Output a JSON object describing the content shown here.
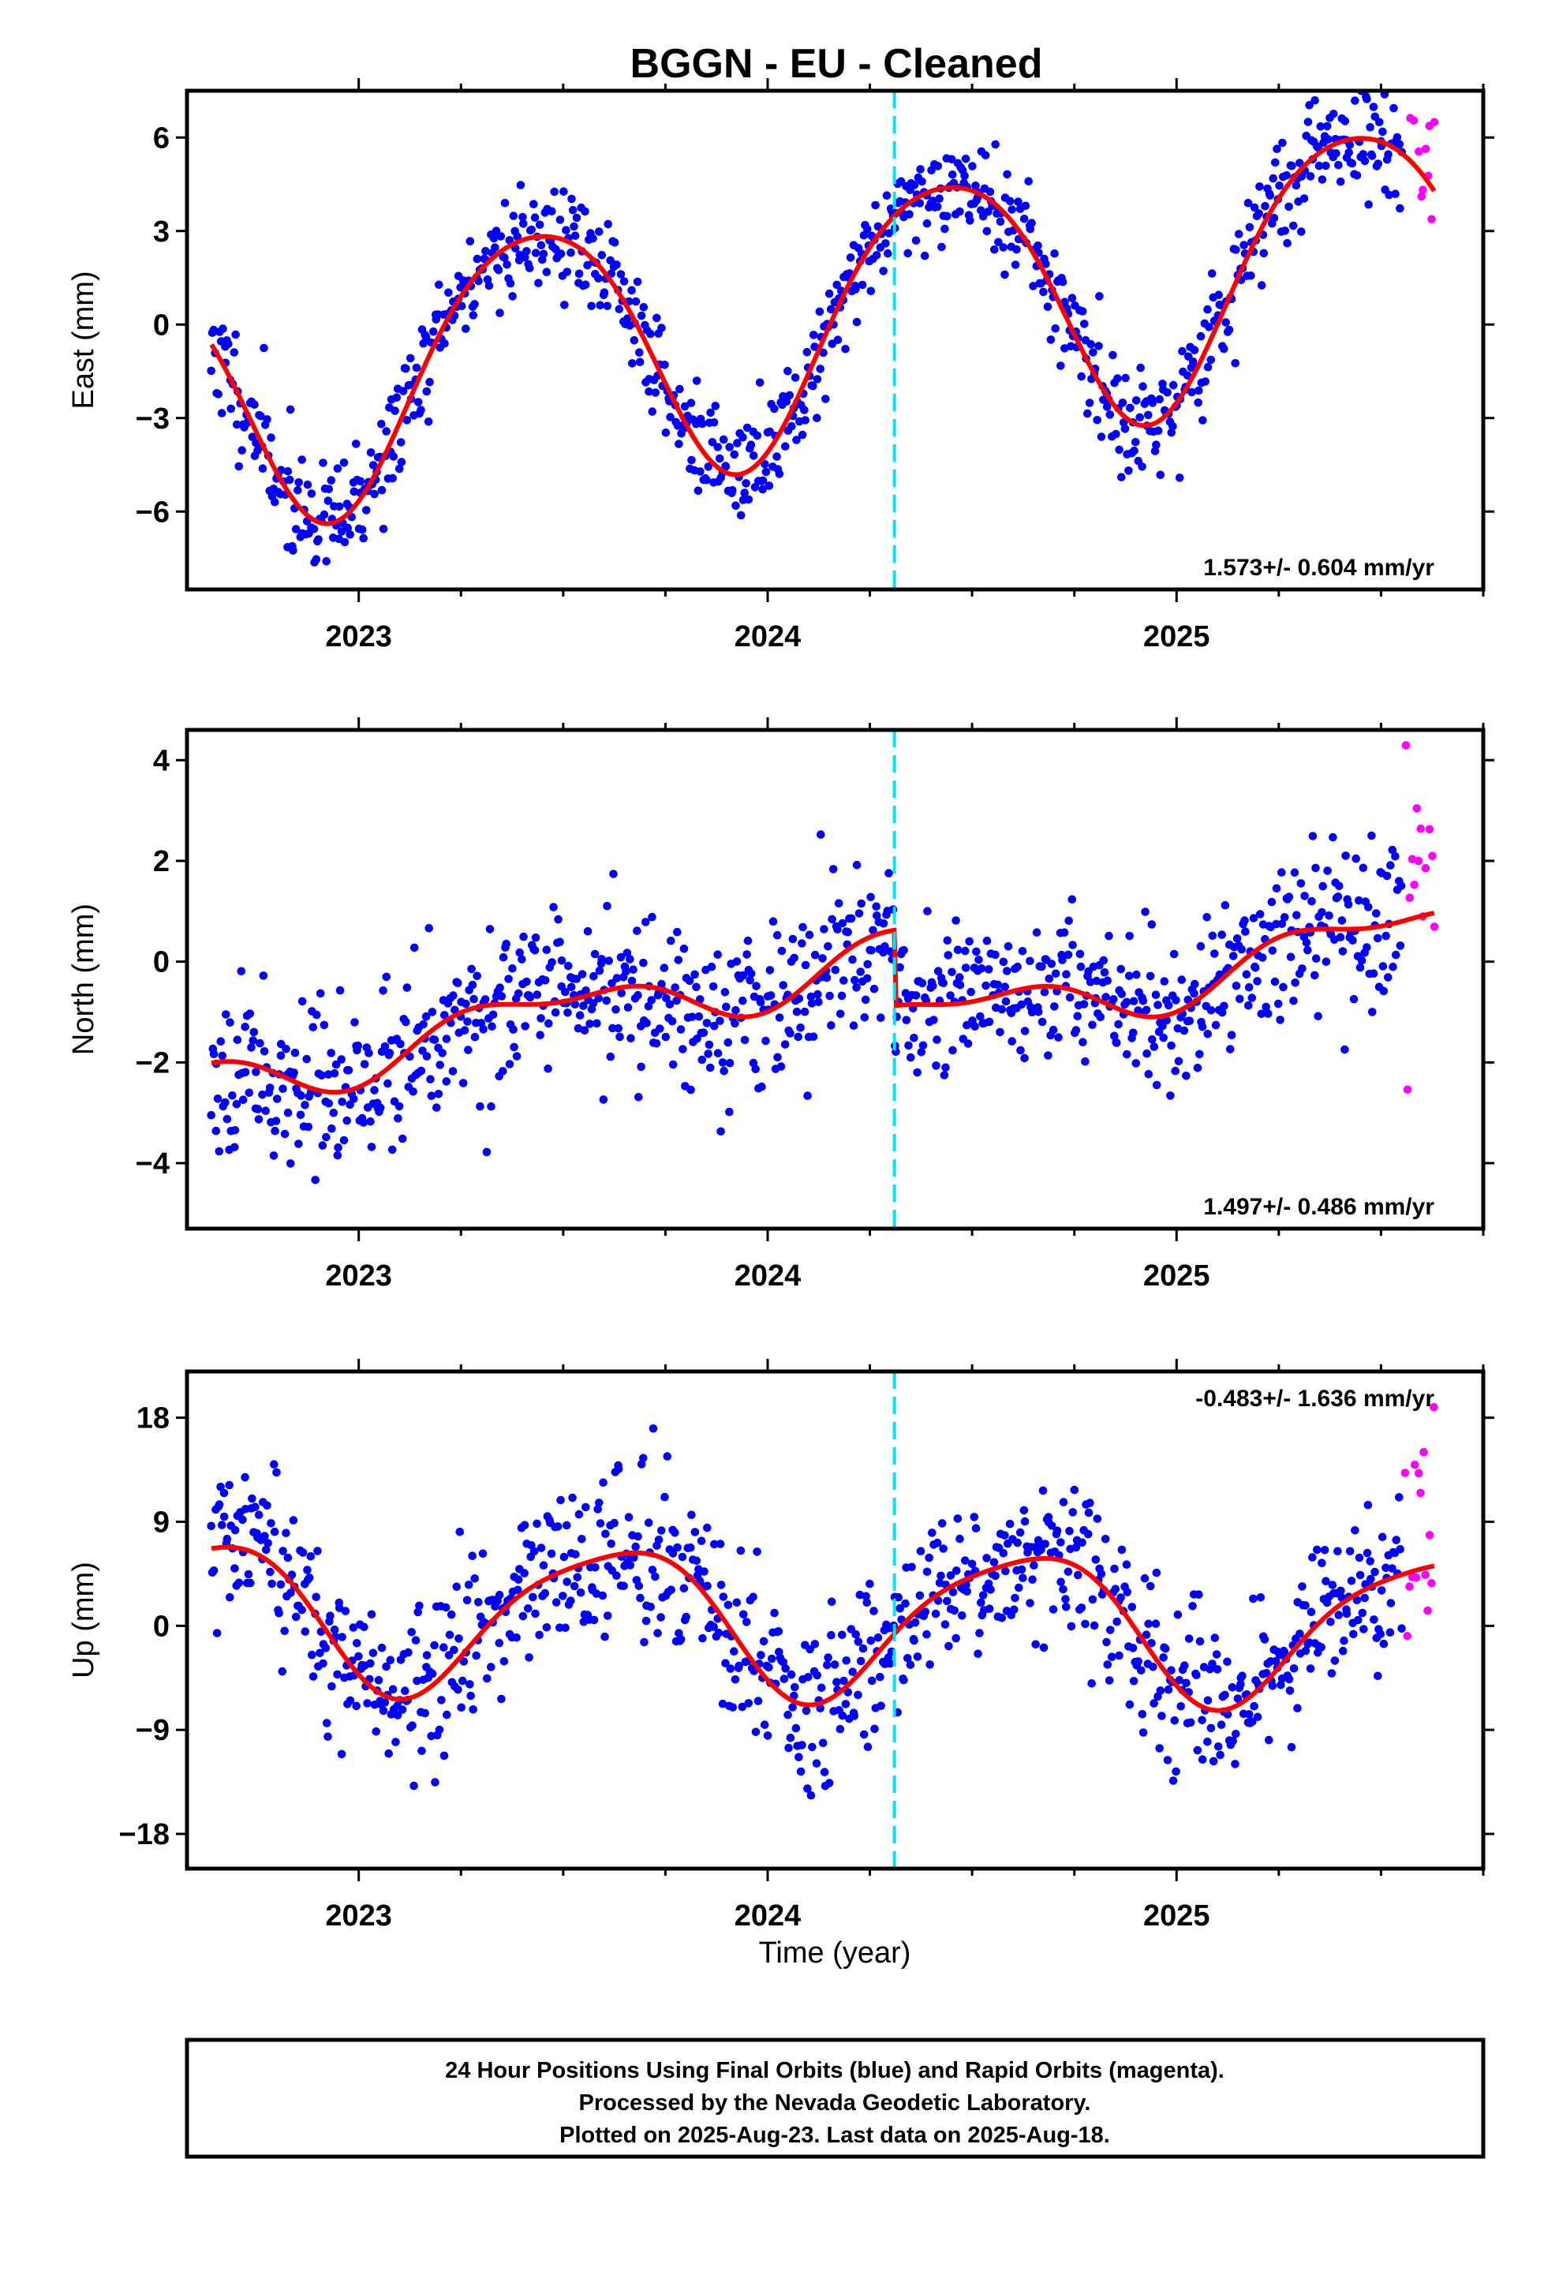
{
  "title": "BGGN  - EU - Cleaned",
  "x_axis_label": "Time (year)",
  "caption_lines": [
    "24 Hour Positions Using Final Orbits (blue) and Rapid Orbits (magenta).",
    "Processed by the Nevada Geodetic Laboratory.",
    "Plotted on 2025-Aug-23. Last data on 2025-Aug-18."
  ],
  "colors": {
    "final_orbits": "#0000ff",
    "rapid_orbits": "#ff00ff",
    "model_fit": "#ff0000",
    "equipment_change": "#00e5ee",
    "frame": "#000000",
    "background": "#ffffff"
  },
  "chart_data": [
    {
      "type": "scatter",
      "component": "east",
      "ylabel": "East (mm)",
      "rate_label": "1.573+/- 0.604 mm/yr",
      "rate_position": "bottom-right",
      "xlim": [
        2022.58,
        2025.75
      ],
      "ylim": [
        -8.5,
        7.5
      ],
      "yticks": [
        -6,
        -3,
        0,
        3,
        6
      ],
      "yticklabels": [
        "−6",
        "−3",
        "0",
        "3",
        "6"
      ],
      "xticks": [
        2023,
        2024,
        2025
      ],
      "xticklabels": [
        "2023",
        "2024",
        "2025"
      ],
      "x_minor_ticks": [
        2023.25,
        2023.5,
        2023.75,
        2024.25,
        2024.5,
        2024.75,
        2025.25,
        2025.5,
        2025.75
      ],
      "equipment_change_x": 2024.31,
      "fit": {
        "offset": 0.0,
        "trend": 1.573,
        "amp1": 4.2,
        "phase1": 2023.18,
        "amp2": 0.5,
        "phase2": 2023.05,
        "step": 0.0,
        "noise": 0.9,
        "seed": 11
      },
      "series": [
        {
          "name": "Final Orbits",
          "x_start": 2022.64,
          "x_end": 2025.55,
          "n": 900,
          "color": "#0000ff"
        },
        {
          "name": "Rapid Orbits",
          "x_start": 2025.56,
          "x_end": 2025.63,
          "n": 14,
          "color": "#ff00ff"
        }
      ],
      "grid": false,
      "legend": "none"
    },
    {
      "type": "scatter",
      "component": "north",
      "ylabel": "North (mm)",
      "rate_label": "1.497+/- 0.486 mm/yr",
      "rate_position": "bottom-right",
      "xlim": [
        2022.58,
        2025.75
      ],
      "ylim": [
        -5.3,
        4.6
      ],
      "yticks": [
        -4,
        -2,
        0,
        2,
        4
      ],
      "yticklabels": [
        "−4",
        "−2",
        "0",
        "2",
        "4"
      ],
      "xticks": [
        2023,
        2024,
        2025
      ],
      "xticklabels": [
        "2023",
        "2024",
        "2025"
      ],
      "x_minor_ticks": [
        2023.25,
        2023.5,
        2023.75,
        2024.25,
        2024.5,
        2024.75,
        2025.25,
        2025.5,
        2025.75
      ],
      "equipment_change_x": 2024.31,
      "fit": {
        "offset": -0.28,
        "trend": 1.497,
        "amp1": 0.5,
        "phase1": 2023.2,
        "amp2": 0.25,
        "phase2": 2023.1,
        "step": -1.5,
        "noise": 0.8,
        "seed": 23
      },
      "series": [
        {
          "name": "Final Orbits",
          "x_start": 2022.64,
          "x_end": 2025.55,
          "n": 900,
          "color": "#0000ff"
        },
        {
          "name": "Rapid Orbits",
          "x_start": 2025.56,
          "x_end": 2025.63,
          "n": 14,
          "color": "#ff00ff"
        }
      ],
      "grid": false,
      "legend": "none"
    },
    {
      "type": "scatter",
      "component": "up",
      "ylabel": "Up (mm)",
      "rate_label": "-0.483+/- 1.636 mm/yr",
      "rate_position": "top-right",
      "xlim": [
        2022.58,
        2025.75
      ],
      "ylim": [
        -21,
        22
      ],
      "yticks": [
        -18,
        -9,
        0,
        9,
        18
      ],
      "yticklabels": [
        "−18",
        "−9",
        "0",
        "9",
        "18"
      ],
      "xticks": [
        2023,
        2024,
        2025
      ],
      "xticklabels": [
        "2023",
        "2024",
        "2025"
      ],
      "x_minor_ticks": [
        2023.25,
        2023.5,
        2023.75,
        2024.25,
        2024.5,
        2024.75,
        2025.25,
        2025.5,
        2025.75
      ],
      "equipment_change_x": 2024.31,
      "fit": {
        "offset": 0.6,
        "trend": -0.483,
        "amp1": 6.3,
        "phase1": 2023.37,
        "amp2": 1.2,
        "phase2": 2023.2,
        "step": 0.0,
        "noise": 3.6,
        "seed": 37
      },
      "series": [
        {
          "name": "Final Orbits",
          "x_start": 2022.64,
          "x_end": 2025.55,
          "n": 900,
          "color": "#0000ff"
        },
        {
          "name": "Rapid Orbits",
          "x_start": 2025.56,
          "x_end": 2025.63,
          "n": 14,
          "color": "#ff00ff"
        }
      ],
      "grid": false,
      "legend": "none"
    }
  ]
}
